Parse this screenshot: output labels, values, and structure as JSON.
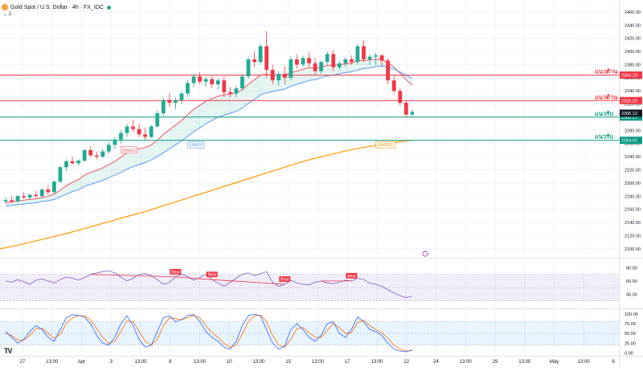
{
  "header": {
    "symbol_title": "Gold Spot / U.S. Dollar · 4h · FX_IDC",
    "indicator_count": "2",
    "logo_text": "TV"
  },
  "colors": {
    "up": "#22ab94",
    "down": "#f23645",
    "ema12": "#f7525f",
    "ema26": "#5b9cf6",
    "ema200": "#ff9800",
    "resistance": "#f23645",
    "support": "#089981",
    "rsi": "#7e57c2",
    "stoch_k": "#2962ff",
    "stoch_d": "#ff6d00"
  },
  "chart_data": [
    {
      "type": "candlestick",
      "title": "Gold Spot / U.S. Dollar · 4h · FX_IDC",
      "x_tick_labels": [
        "27",
        "13:00",
        "Apr",
        "3",
        "13:00",
        "8",
        "13:00",
        "10",
        "13:00",
        "15",
        "13:00",
        "17",
        "13:00",
        "22",
        "24",
        "13:00",
        "29",
        "13:00",
        "May",
        "13:00",
        "6"
      ],
      "y_axis_ticks": [
        2100,
        2120,
        2140,
        2160,
        2180,
        2200,
        2220,
        2240,
        2260,
        2280,
        2300,
        2320,
        2340,
        2360,
        2380,
        2400,
        2420,
        2440,
        2460
      ],
      "ylim": [
        2090,
        2466
      ],
      "candles": [
        {
          "o": 2172,
          "h": 2178,
          "l": 2168,
          "c": 2174
        },
        {
          "o": 2174,
          "h": 2180,
          "l": 2170,
          "c": 2172
        },
        {
          "o": 2172,
          "h": 2182,
          "l": 2170,
          "c": 2180
        },
        {
          "o": 2180,
          "h": 2186,
          "l": 2176,
          "c": 2178
        },
        {
          "o": 2178,
          "h": 2184,
          "l": 2174,
          "c": 2182
        },
        {
          "o": 2182,
          "h": 2188,
          "l": 2178,
          "c": 2180
        },
        {
          "o": 2180,
          "h": 2192,
          "l": 2178,
          "c": 2190
        },
        {
          "o": 2190,
          "h": 2196,
          "l": 2182,
          "c": 2186
        },
        {
          "o": 2186,
          "h": 2204,
          "l": 2184,
          "c": 2202
        },
        {
          "o": 2202,
          "h": 2226,
          "l": 2200,
          "c": 2224
        },
        {
          "o": 2224,
          "h": 2236,
          "l": 2218,
          "c": 2233
        },
        {
          "o": 2233,
          "h": 2240,
          "l": 2228,
          "c": 2230
        },
        {
          "o": 2230,
          "h": 2236,
          "l": 2226,
          "c": 2234
        },
        {
          "o": 2234,
          "h": 2252,
          "l": 2232,
          "c": 2250
        },
        {
          "o": 2250,
          "h": 2256,
          "l": 2240,
          "c": 2242
        },
        {
          "o": 2242,
          "h": 2248,
          "l": 2236,
          "c": 2240
        },
        {
          "o": 2240,
          "h": 2252,
          "l": 2238,
          "c": 2248
        },
        {
          "o": 2248,
          "h": 2262,
          "l": 2244,
          "c": 2258
        },
        {
          "o": 2258,
          "h": 2270,
          "l": 2252,
          "c": 2266
        },
        {
          "o": 2266,
          "h": 2280,
          "l": 2260,
          "c": 2276
        },
        {
          "o": 2276,
          "h": 2290,
          "l": 2270,
          "c": 2286
        },
        {
          "o": 2286,
          "h": 2296,
          "l": 2278,
          "c": 2282
        },
        {
          "o": 2282,
          "h": 2290,
          "l": 2270,
          "c": 2274
        },
        {
          "o": 2274,
          "h": 2284,
          "l": 2266,
          "c": 2270
        },
        {
          "o": 2270,
          "h": 2288,
          "l": 2268,
          "c": 2286
        },
        {
          "o": 2286,
          "h": 2310,
          "l": 2284,
          "c": 2306
        },
        {
          "o": 2306,
          "h": 2330,
          "l": 2302,
          "c": 2326
        },
        {
          "o": 2326,
          "h": 2336,
          "l": 2316,
          "c": 2322
        },
        {
          "o": 2322,
          "h": 2330,
          "l": 2312,
          "c": 2326
        },
        {
          "o": 2326,
          "h": 2340,
          "l": 2320,
          "c": 2336
        },
        {
          "o": 2336,
          "h": 2356,
          "l": 2330,
          "c": 2352
        },
        {
          "o": 2352,
          "h": 2366,
          "l": 2346,
          "c": 2362
        },
        {
          "o": 2362,
          "h": 2368,
          "l": 2350,
          "c": 2354
        },
        {
          "o": 2354,
          "h": 2362,
          "l": 2346,
          "c": 2358
        },
        {
          "o": 2358,
          "h": 2362,
          "l": 2344,
          "c": 2350
        },
        {
          "o": 2350,
          "h": 2360,
          "l": 2342,
          "c": 2356
        },
        {
          "o": 2356,
          "h": 2362,
          "l": 2330,
          "c": 2338
        },
        {
          "o": 2338,
          "h": 2346,
          "l": 2330,
          "c": 2336
        },
        {
          "o": 2336,
          "h": 2348,
          "l": 2330,
          "c": 2344
        },
        {
          "o": 2344,
          "h": 2366,
          "l": 2340,
          "c": 2362
        },
        {
          "o": 2362,
          "h": 2392,
          "l": 2358,
          "c": 2388
        },
        {
          "o": 2388,
          "h": 2400,
          "l": 2376,
          "c": 2384
        },
        {
          "o": 2384,
          "h": 2412,
          "l": 2380,
          "c": 2408
        },
        {
          "o": 2408,
          "h": 2431,
          "l": 2360,
          "c": 2372
        },
        {
          "o": 2372,
          "h": 2380,
          "l": 2350,
          "c": 2356
        },
        {
          "o": 2356,
          "h": 2370,
          "l": 2348,
          "c": 2366
        },
        {
          "o": 2366,
          "h": 2378,
          "l": 2350,
          "c": 2360
        },
        {
          "o": 2360,
          "h": 2392,
          "l": 2356,
          "c": 2388
        },
        {
          "o": 2388,
          "h": 2396,
          "l": 2374,
          "c": 2380
        },
        {
          "o": 2380,
          "h": 2394,
          "l": 2376,
          "c": 2390
        },
        {
          "o": 2390,
          "h": 2398,
          "l": 2376,
          "c": 2382
        },
        {
          "o": 2382,
          "h": 2390,
          "l": 2364,
          "c": 2370
        },
        {
          "o": 2370,
          "h": 2386,
          "l": 2366,
          "c": 2384
        },
        {
          "o": 2384,
          "h": 2400,
          "l": 2378,
          "c": 2396
        },
        {
          "o": 2396,
          "h": 2402,
          "l": 2370,
          "c": 2376
        },
        {
          "o": 2376,
          "h": 2386,
          "l": 2372,
          "c": 2382
        },
        {
          "o": 2382,
          "h": 2392,
          "l": 2376,
          "c": 2388
        },
        {
          "o": 2388,
          "h": 2394,
          "l": 2380,
          "c": 2384
        },
        {
          "o": 2384,
          "h": 2412,
          "l": 2380,
          "c": 2408
        },
        {
          "o": 2408,
          "h": 2417,
          "l": 2384,
          "c": 2388
        },
        {
          "o": 2388,
          "h": 2396,
          "l": 2380,
          "c": 2392
        },
        {
          "o": 2392,
          "h": 2398,
          "l": 2380,
          "c": 2394
        },
        {
          "o": 2394,
          "h": 2396,
          "l": 2378,
          "c": 2386
        },
        {
          "o": 2386,
          "h": 2390,
          "l": 2350,
          "c": 2356
        },
        {
          "o": 2356,
          "h": 2364,
          "l": 2336,
          "c": 2340
        },
        {
          "o": 2340,
          "h": 2344,
          "l": 2318,
          "c": 2322
        },
        {
          "o": 2322,
          "h": 2326,
          "l": 2300,
          "c": 2304
        },
        {
          "o": 2304,
          "h": 2312,
          "l": 2300,
          "c": 2308
        }
      ],
      "series": [
        {
          "name": "EMA12",
          "values": [
            2170,
            2171,
            2173,
            2174,
            2175,
            2176,
            2178,
            2180,
            2183,
            2189,
            2196,
            2201,
            2205,
            2212,
            2216,
            2219,
            2223,
            2228,
            2233,
            2239,
            2246,
            2250,
            2252,
            2254,
            2258,
            2265,
            2274,
            2281,
            2288,
            2295,
            2304,
            2312,
            2318,
            2324,
            2328,
            2332,
            2334,
            2335,
            2337,
            2342,
            2350,
            2357,
            2364,
            2365,
            2364,
            2364,
            2364,
            2368,
            2370,
            2373,
            2375,
            2374,
            2376,
            2379,
            2379,
            2380,
            2381,
            2382,
            2386,
            2386,
            2387,
            2388,
            2388,
            2383,
            2376,
            2367,
            2357,
            2349
          ]
        },
        {
          "name": "EMA26",
          "values": [
            2165,
            2166,
            2167,
            2168,
            2169,
            2170,
            2172,
            2173,
            2175,
            2179,
            2183,
            2187,
            2190,
            2195,
            2198,
            2201,
            2204,
            2208,
            2212,
            2216,
            2221,
            2225,
            2228,
            2231,
            2235,
            2240,
            2246,
            2252,
            2258,
            2264,
            2271,
            2278,
            2284,
            2290,
            2295,
            2300,
            2303,
            2306,
            2309,
            2314,
            2321,
            2327,
            2334,
            2337,
            2339,
            2341,
            2343,
            2347,
            2350,
            2353,
            2356,
            2357,
            2360,
            2363,
            2364,
            2366,
            2368,
            2369,
            2372,
            2374,
            2375,
            2377,
            2378,
            2376,
            2373,
            2369,
            2364,
            2359
          ]
        },
        {
          "name": "EMA200",
          "values": [
            2100,
            2105,
            2111,
            2117,
            2123,
            2130,
            2137,
            2144,
            2151,
            2158,
            2166,
            2174,
            2182,
            2190,
            2198,
            2206,
            2214,
            2222,
            2230,
            2237,
            2243,
            2249,
            2254,
            2258,
            2262,
            2265
          ]
        }
      ],
      "horizontal_lines": [
        {
          "label": "แนวต้าน",
          "value": 2364.1,
          "value_label": "2364.10",
          "color": "#f23645"
        },
        {
          "label": "แนวต้าน",
          "value": 2325.29,
          "value_label": "2325.29",
          "color": "#f23645"
        },
        {
          "label": "แนวรับ",
          "value": 2300.27,
          "value_label": "2300.27",
          "color": "#089981"
        },
        {
          "label": "แนวรับ",
          "value": 2264.92,
          "value_label": "2264.92",
          "color": "#089981"
        }
      ],
      "price_labels": {
        "last": "2306.12",
        "last_value": 2306.12
      },
      "series_tags": [
        {
          "text": "EMA12"
        },
        {
          "text": "EMA26"
        },
        {
          "text": "EMA200"
        }
      ]
    },
    {
      "type": "line",
      "title": "",
      "y_axis_ticks": [
        40,
        60,
        80
      ],
      "ylim": [
        20,
        90
      ],
      "band": [
        30,
        70
      ],
      "series": [
        {
          "name": "",
          "values": [
            60,
            58,
            62,
            59,
            55,
            61,
            63,
            60,
            57,
            62,
            66,
            64,
            61,
            65,
            70,
            72,
            74,
            75,
            72,
            66,
            60,
            64,
            70,
            71,
            68,
            62,
            55,
            58,
            66,
            70,
            67,
            61,
            65,
            70,
            62,
            57,
            52,
            58,
            64,
            70,
            72,
            68,
            71,
            74,
            58,
            52,
            55,
            61,
            57,
            55,
            54,
            58,
            60,
            57,
            56,
            58,
            61,
            60,
            64,
            62,
            57,
            55,
            52,
            47,
            42,
            38,
            35,
            37
          ]
        }
      ],
      "divergence_labels": [
        {
          "text": "Bear"
        },
        {
          "text": "Bear"
        },
        {
          "text": "Bear"
        },
        {
          "text": "Bear"
        }
      ]
    },
    {
      "type": "line",
      "title": "",
      "y_axis_ticks": [
        0.0,
        25.0,
        50.0,
        75.0,
        100.0
      ],
      "ylim": [
        -5,
        110
      ],
      "band": [
        20,
        80
      ],
      "series": [
        {
          "name": "",
          "values": [
            55,
            40,
            25,
            35,
            55,
            70,
            60,
            40,
            30,
            60,
            90,
            98,
            96,
            92,
            75,
            45,
            25,
            20,
            40,
            75,
            95,
            70,
            35,
            15,
            20,
            55,
            90,
            95,
            80,
            85,
            96,
            98,
            80,
            55,
            40,
            30,
            15,
            10,
            30,
            70,
            96,
            99,
            95,
            60,
            25,
            10,
            18,
            60,
            75,
            60,
            40,
            30,
            45,
            75,
            80,
            50,
            40,
            60,
            92,
            80,
            60,
            55,
            45,
            25,
            10,
            5,
            3,
            8
          ]
        },
        {
          "name": "",
          "values": [
            50,
            45,
            33,
            33,
            45,
            62,
            63,
            50,
            38,
            48,
            75,
            90,
            96,
            95,
            85,
            62,
            40,
            25,
            30,
            55,
            82,
            80,
            55,
            30,
            20,
            35,
            70,
            90,
            88,
            85,
            90,
            96,
            90,
            70,
            52,
            40,
            25,
            15,
            20,
            48,
            80,
            95,
            97,
            80,
            45,
            20,
            15,
            35,
            62,
            65,
            52,
            40,
            40,
            58,
            75,
            65,
            50,
            52,
            78,
            84,
            70,
            60,
            52,
            38,
            20,
            10,
            5,
            6
          ]
        }
      ]
    }
  ]
}
